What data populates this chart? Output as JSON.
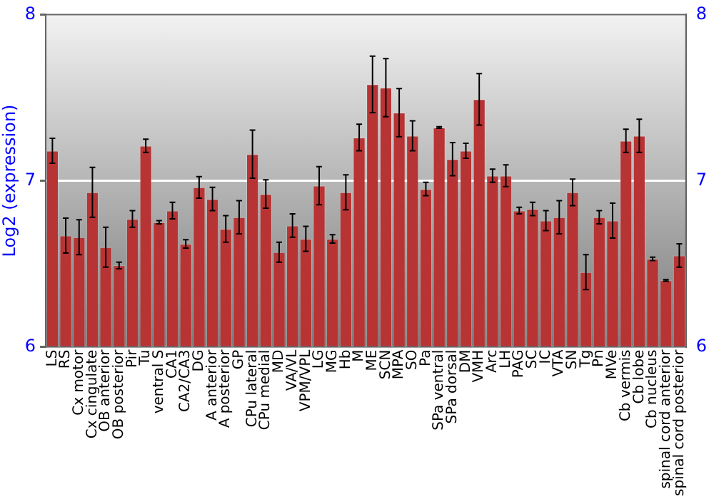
{
  "chart_data": {
    "type": "bar",
    "ylabel": "Log2 (expression)",
    "categories": [
      "LS",
      "RS",
      "Cx motor",
      "Cx cingulate",
      "OB anterior",
      "OB posterior",
      "Pir",
      "Tu",
      "ventral S",
      "CA1",
      "CA2/CA3",
      "DG",
      "A anterior",
      "A posterior",
      "GP",
      "CPu lateral",
      "CPu medial",
      "MD",
      "VA/VL",
      "VPM/VPL",
      "LG",
      "MG",
      "Hb",
      "M",
      "ME",
      "SCN",
      "MPA",
      "SO",
      "Pa",
      "SPa ventral",
      "SPa dorsal",
      "DM",
      "VMH",
      "Arc",
      "LH",
      "PAG",
      "SC",
      "IC",
      "VTA",
      "SN",
      "Tg",
      "Pn",
      "MVe",
      "Cb vermis",
      "Cb lobe",
      "Cb nucleus",
      "spinal cord anterior",
      "spinal cord posterior"
    ],
    "values": [
      7.18,
      6.67,
      6.66,
      6.93,
      6.6,
      6.49,
      6.77,
      7.21,
      6.75,
      6.82,
      6.62,
      6.96,
      6.89,
      6.71,
      6.78,
      7.16,
      6.92,
      6.57,
      6.73,
      6.65,
      6.97,
      6.65,
      6.93,
      7.26,
      7.58,
      7.56,
      7.41,
      7.27,
      6.95,
      7.32,
      7.13,
      7.18,
      7.49,
      7.03,
      7.03,
      6.82,
      6.83,
      6.76,
      6.78,
      6.93,
      6.45,
      6.78,
      6.76,
      7.24,
      7.27,
      6.53,
      6.4,
      6.55
    ],
    "errors": [
      0.075,
      0.105,
      0.105,
      0.15,
      0.12,
      0.02,
      0.05,
      0.04,
      0.01,
      0.05,
      0.025,
      0.065,
      0.07,
      0.08,
      0.1,
      0.145,
      0.085,
      0.06,
      0.07,
      0.075,
      0.115,
      0.025,
      0.105,
      0.08,
      0.17,
      0.175,
      0.145,
      0.09,
      0.04,
      0.005,
      0.1,
      0.045,
      0.155,
      0.04,
      0.065,
      0.02,
      0.04,
      0.06,
      0.1,
      0.08,
      0.105,
      0.04,
      0.105,
      0.07,
      0.1,
      0.01,
      0.005,
      0.07
    ],
    "color": "#b83434",
    "ylim": [
      6,
      8
    ],
    "yticks": [
      6,
      7,
      8
    ],
    "y2lim": [
      6,
      8
    ],
    "y2ticks": [
      6,
      7,
      8
    ],
    "grid": "y",
    "legend": false
  }
}
